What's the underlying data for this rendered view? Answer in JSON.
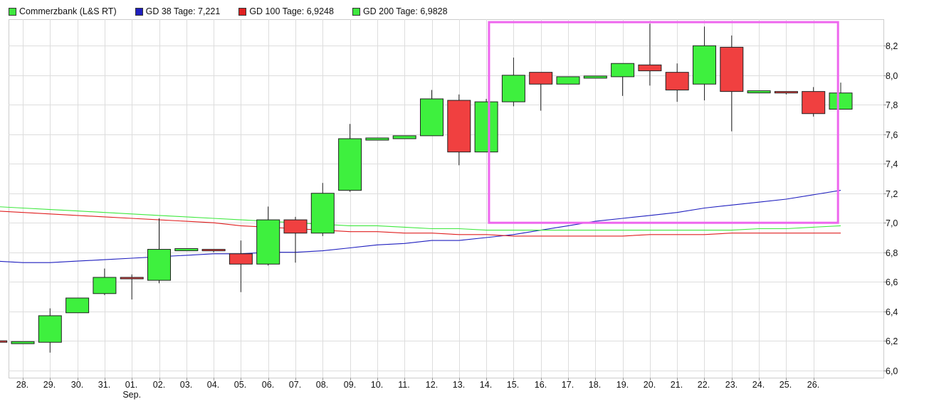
{
  "legend": {
    "price": {
      "label": "Commerzbank (L&S RT)",
      "color": "#3ee83e"
    },
    "gd38": {
      "label": "GD 38 Tage: 7,221",
      "color": "#1f1fbf"
    },
    "gd100": {
      "label": "GD 100 Tage: 6,9248",
      "color": "#e02020"
    },
    "gd200": {
      "label": "GD 200 Tage: 6,9828",
      "color": "#3ee83e"
    }
  },
  "chart_data": {
    "type": "candlestick",
    "ylim": [
      5.95,
      8.38
    ],
    "y_ticks": [
      {
        "value": 6.0,
        "label": "6,0"
      },
      {
        "value": 6.2,
        "label": "6,2"
      },
      {
        "value": 6.4,
        "label": "6,4"
      },
      {
        "value": 6.6,
        "label": "6,6"
      },
      {
        "value": 6.8,
        "label": "6,8"
      },
      {
        "value": 7.0,
        "label": "7,0"
      },
      {
        "value": 7.2,
        "label": "7,2"
      },
      {
        "value": 7.4,
        "label": "7,4"
      },
      {
        "value": 7.6,
        "label": "7,6"
      },
      {
        "value": 7.8,
        "label": "7,8"
      },
      {
        "value": 8.0,
        "label": "8,0"
      },
      {
        "value": 8.2,
        "label": "8,2"
      }
    ],
    "x_labels": [
      "28.",
      "29.",
      "30.",
      "31.",
      "01.",
      "02.",
      "03.",
      "04.",
      "05.",
      "06.",
      "07.",
      "08.",
      "09.",
      "10.",
      "11.",
      "12.",
      "13.",
      "14.",
      "15.",
      "16.",
      "17.",
      "18.",
      "19.",
      "20.",
      "21.",
      "22.",
      "23.",
      "24.",
      "25.",
      "26."
    ],
    "x_sublabels": [
      {
        "index": 4,
        "text": "Sep."
      }
    ],
    "candles": [
      {
        "o": 6.2,
        "h": 6.2,
        "l": 6.19,
        "c": 6.19
      },
      {
        "o": 6.19,
        "h": 6.19,
        "l": 6.19,
        "c": 6.19
      },
      {
        "o": 6.19,
        "h": 6.42,
        "l": 6.12,
        "c": 6.37
      },
      {
        "o": 6.39,
        "h": 6.49,
        "l": 6.39,
        "c": 6.49
      },
      {
        "o": 6.52,
        "h": 6.69,
        "l": 6.51,
        "c": 6.63
      },
      {
        "o": 6.63,
        "h": 6.65,
        "l": 6.48,
        "c": 6.62
      },
      {
        "o": 6.61,
        "h": 7.03,
        "l": 6.59,
        "c": 6.82
      },
      {
        "o": 6.82,
        "h": 6.82,
        "l": 6.82,
        "c": 6.82
      },
      {
        "o": 6.82,
        "h": 6.82,
        "l": 6.8,
        "c": 6.81
      },
      {
        "o": 6.79,
        "h": 6.88,
        "l": 6.53,
        "c": 6.72
      },
      {
        "o": 6.72,
        "h": 7.11,
        "l": 6.71,
        "c": 7.02
      },
      {
        "o": 7.02,
        "h": 7.04,
        "l": 6.73,
        "c": 6.93
      },
      {
        "o": 6.93,
        "h": 7.27,
        "l": 6.91,
        "c": 7.2
      },
      {
        "o": 7.22,
        "h": 7.67,
        "l": 7.21,
        "c": 7.57
      },
      {
        "o": 7.57,
        "h": 7.57,
        "l": 7.57,
        "c": 7.57
      },
      {
        "o": 7.57,
        "h": 7.59,
        "l": 7.57,
        "c": 7.59
      },
      {
        "o": 7.59,
        "h": 7.9,
        "l": 7.59,
        "c": 7.84
      },
      {
        "o": 7.83,
        "h": 7.87,
        "l": 7.39,
        "c": 7.48
      },
      {
        "o": 7.48,
        "h": 7.84,
        "l": 7.48,
        "c": 7.82
      },
      {
        "o": 7.82,
        "h": 8.12,
        "l": 7.79,
        "c": 8.0
      },
      {
        "o": 8.02,
        "h": 8.02,
        "l": 7.76,
        "c": 7.94
      },
      {
        "o": 7.94,
        "h": 7.99,
        "l": 7.94,
        "c": 7.99
      },
      {
        "o": 7.99,
        "h": 7.99,
        "l": 7.99,
        "c": 7.99
      },
      {
        "o": 7.99,
        "h": 8.08,
        "l": 7.86,
        "c": 8.08
      },
      {
        "o": 8.07,
        "h": 8.35,
        "l": 7.93,
        "c": 8.03
      },
      {
        "o": 8.02,
        "h": 8.08,
        "l": 7.82,
        "c": 7.9
      },
      {
        "o": 7.94,
        "h": 8.33,
        "l": 7.83,
        "c": 8.2
      },
      {
        "o": 8.19,
        "h": 8.27,
        "l": 7.62,
        "c": 7.89
      },
      {
        "o": 7.89,
        "h": 7.89,
        "l": 7.89,
        "c": 7.89
      },
      {
        "o": 7.89,
        "h": 7.89,
        "l": 7.87,
        "c": 7.88
      },
      {
        "o": 7.89,
        "h": 7.92,
        "l": 7.72,
        "c": 7.74
      },
      {
        "o": 7.77,
        "h": 7.95,
        "l": 7.77,
        "c": 7.88
      }
    ],
    "series": [
      {
        "name": "GD 38 Tage",
        "color": "#1f1fbf",
        "values": [
          6.74,
          6.73,
          6.73,
          6.74,
          6.75,
          6.76,
          6.77,
          6.78,
          6.79,
          6.79,
          6.8,
          6.8,
          6.81,
          6.83,
          6.85,
          6.86,
          6.88,
          6.88,
          6.9,
          6.92,
          6.95,
          6.98,
          7.01,
          7.03,
          7.05,
          7.07,
          7.1,
          7.12,
          7.14,
          7.16,
          7.19,
          7.22
        ]
      },
      {
        "name": "GD 100 Tage",
        "color": "#e02020",
        "values": [
          7.08,
          7.07,
          7.06,
          7.05,
          7.04,
          7.03,
          7.02,
          7.01,
          7.0,
          6.98,
          6.97,
          6.96,
          6.95,
          6.94,
          6.94,
          6.93,
          6.93,
          6.92,
          6.92,
          6.91,
          6.91,
          6.91,
          6.91,
          6.91,
          6.92,
          6.92,
          6.92,
          6.93,
          6.93,
          6.93,
          6.93,
          6.93
        ]
      },
      {
        "name": "GD 200 Tage",
        "color": "#3ee83e",
        "values": [
          7.11,
          7.1,
          7.09,
          7.08,
          7.07,
          7.06,
          7.05,
          7.04,
          7.03,
          7.02,
          7.01,
          7.0,
          6.99,
          6.98,
          6.98,
          6.97,
          6.96,
          6.96,
          6.95,
          6.95,
          6.95,
          6.95,
          6.95,
          6.95,
          6.95,
          6.95,
          6.95,
          6.95,
          6.96,
          6.96,
          6.97,
          6.98
        ]
      }
    ],
    "highlight_box": {
      "x_from": 18.1,
      "x_to": 30.9,
      "y_from": 7.0,
      "y_to": 8.36,
      "color": "#ee66ee"
    },
    "colors": {
      "up": "#3ef03e",
      "down": "#f04040",
      "grid": "#dddddd",
      "frame": "#cccccc"
    },
    "grid": true
  }
}
